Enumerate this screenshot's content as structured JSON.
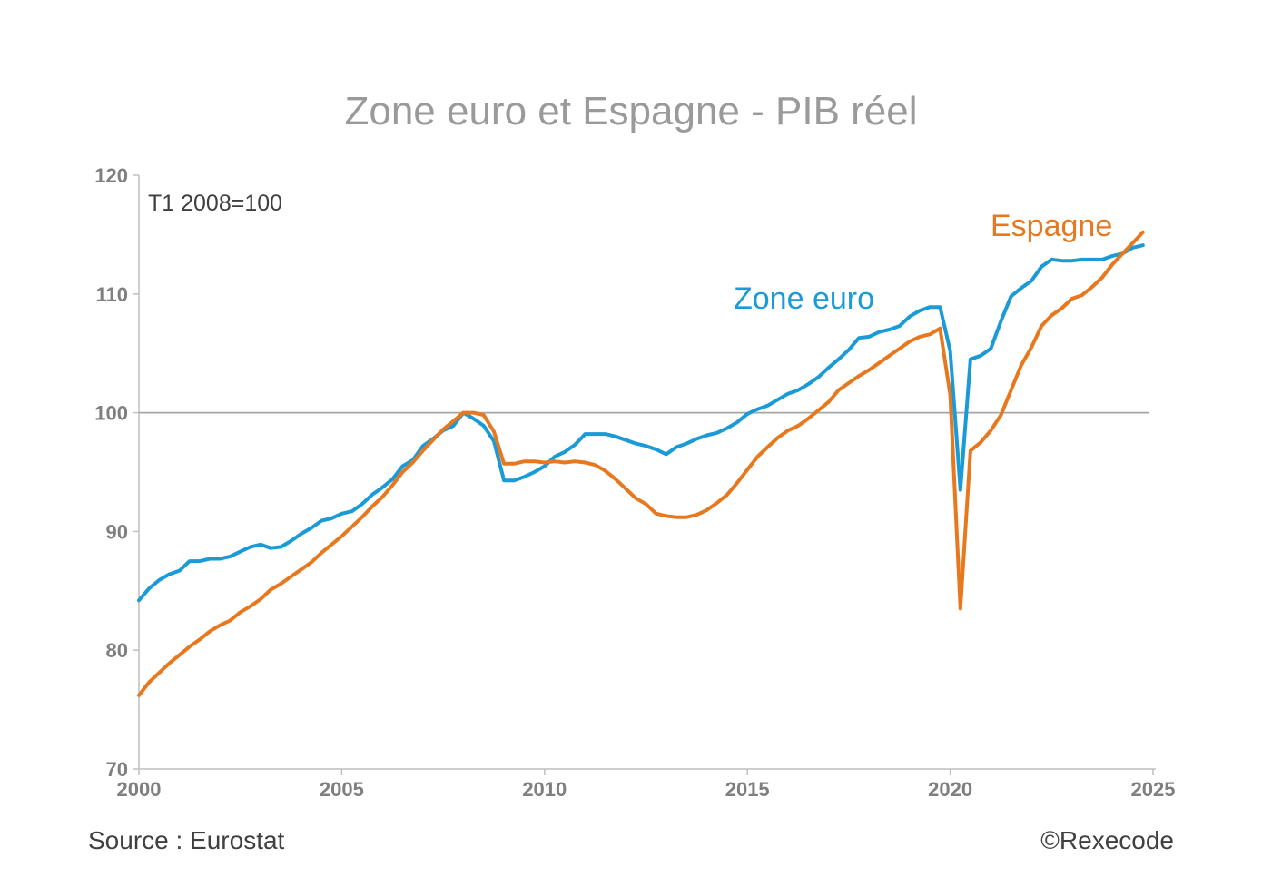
{
  "chart_data": {
    "type": "line",
    "title": "Zone euro et Espagne - PIB réel",
    "subtitle": "T1 2008=100",
    "xlabel": "",
    "ylabel": "",
    "xlim": [
      2000,
      2025
    ],
    "ylim": [
      70,
      120
    ],
    "x_ticks": [
      2000,
      2005,
      2010,
      2015,
      2020,
      2025
    ],
    "y_ticks": [
      70,
      80,
      90,
      100,
      110,
      120
    ],
    "x_tick_labels": [
      "2000",
      "2005",
      "2010",
      "2015",
      "2020",
      "2025"
    ],
    "y_tick_labels": [
      "70",
      "80",
      "90",
      "100",
      "110",
      "120"
    ],
    "reference_line": 100,
    "grid": false,
    "series": [
      {
        "name": "Zone euro",
        "color": "#1a9bd7",
        "points": [
          [
            2000.0,
            84.2
          ],
          [
            2000.25,
            85.2
          ],
          [
            2000.5,
            85.9
          ],
          [
            2000.75,
            86.4
          ],
          [
            2001.0,
            86.7
          ],
          [
            2001.25,
            87.5
          ],
          [
            2001.5,
            87.5
          ],
          [
            2001.75,
            87.7
          ],
          [
            2002.0,
            87.7
          ],
          [
            2002.25,
            87.9
          ],
          [
            2002.5,
            88.3
          ],
          [
            2002.75,
            88.7
          ],
          [
            2003.0,
            88.9
          ],
          [
            2003.25,
            88.6
          ],
          [
            2003.5,
            88.7
          ],
          [
            2003.75,
            89.2
          ],
          [
            2004.0,
            89.8
          ],
          [
            2004.25,
            90.3
          ],
          [
            2004.5,
            90.9
          ],
          [
            2004.75,
            91.1
          ],
          [
            2005.0,
            91.5
          ],
          [
            2005.25,
            91.7
          ],
          [
            2005.5,
            92.3
          ],
          [
            2005.75,
            93.1
          ],
          [
            2006.0,
            93.7
          ],
          [
            2006.25,
            94.4
          ],
          [
            2006.5,
            95.5
          ],
          [
            2006.75,
            96.0
          ],
          [
            2007.0,
            97.2
          ],
          [
            2007.25,
            97.8
          ],
          [
            2007.5,
            98.5
          ],
          [
            2007.75,
            98.9
          ],
          [
            2008.0,
            100.0
          ],
          [
            2008.25,
            99.5
          ],
          [
            2008.5,
            98.9
          ],
          [
            2008.75,
            97.6
          ],
          [
            2009.0,
            94.3
          ],
          [
            2009.25,
            94.3
          ],
          [
            2009.5,
            94.6
          ],
          [
            2009.75,
            95.0
          ],
          [
            2010.0,
            95.5
          ],
          [
            2010.25,
            96.3
          ],
          [
            2010.5,
            96.7
          ],
          [
            2010.75,
            97.3
          ],
          [
            2011.0,
            98.2
          ],
          [
            2011.25,
            98.2
          ],
          [
            2011.5,
            98.2
          ],
          [
            2011.75,
            98.0
          ],
          [
            2012.0,
            97.7
          ],
          [
            2012.25,
            97.4
          ],
          [
            2012.5,
            97.2
          ],
          [
            2012.75,
            96.9
          ],
          [
            2013.0,
            96.5
          ],
          [
            2013.25,
            97.1
          ],
          [
            2013.5,
            97.4
          ],
          [
            2013.75,
            97.8
          ],
          [
            2014.0,
            98.1
          ],
          [
            2014.25,
            98.3
          ],
          [
            2014.5,
            98.7
          ],
          [
            2014.75,
            99.2
          ],
          [
            2015.0,
            99.9
          ],
          [
            2015.25,
            100.3
          ],
          [
            2015.5,
            100.6
          ],
          [
            2015.75,
            101.1
          ],
          [
            2016.0,
            101.6
          ],
          [
            2016.25,
            101.9
          ],
          [
            2016.5,
            102.4
          ],
          [
            2016.75,
            103.0
          ],
          [
            2017.0,
            103.8
          ],
          [
            2017.25,
            104.5
          ],
          [
            2017.5,
            105.3
          ],
          [
            2017.75,
            106.3
          ],
          [
            2018.0,
            106.4
          ],
          [
            2018.25,
            106.8
          ],
          [
            2018.5,
            107.0
          ],
          [
            2018.75,
            107.3
          ],
          [
            2019.0,
            108.1
          ],
          [
            2019.25,
            108.6
          ],
          [
            2019.5,
            108.9
          ],
          [
            2019.75,
            108.9
          ],
          [
            2020.0,
            105.2
          ],
          [
            2020.25,
            93.5
          ],
          [
            2020.5,
            104.5
          ],
          [
            2020.75,
            104.8
          ],
          [
            2021.0,
            105.4
          ],
          [
            2021.25,
            107.7
          ],
          [
            2021.5,
            109.8
          ],
          [
            2021.75,
            110.5
          ],
          [
            2022.0,
            111.1
          ],
          [
            2022.25,
            112.3
          ],
          [
            2022.5,
            112.9
          ],
          [
            2022.75,
            112.8
          ],
          [
            2023.0,
            112.8
          ],
          [
            2023.25,
            112.9
          ],
          [
            2023.5,
            112.9
          ],
          [
            2023.75,
            112.9
          ],
          [
            2024.0,
            113.2
          ],
          [
            2024.25,
            113.4
          ],
          [
            2024.5,
            113.9
          ],
          [
            2024.75,
            114.1
          ]
        ]
      },
      {
        "name": "Espagne",
        "color": "#e8781e",
        "points": [
          [
            2000.0,
            76.2
          ],
          [
            2000.25,
            77.3
          ],
          [
            2000.5,
            78.1
          ],
          [
            2000.75,
            78.9
          ],
          [
            2001.0,
            79.6
          ],
          [
            2001.25,
            80.3
          ],
          [
            2001.5,
            80.9
          ],
          [
            2001.75,
            81.6
          ],
          [
            2002.0,
            82.1
          ],
          [
            2002.25,
            82.5
          ],
          [
            2002.5,
            83.2
          ],
          [
            2002.75,
            83.7
          ],
          [
            2003.0,
            84.3
          ],
          [
            2003.25,
            85.1
          ],
          [
            2003.5,
            85.6
          ],
          [
            2003.75,
            86.2
          ],
          [
            2004.0,
            86.8
          ],
          [
            2004.25,
            87.4
          ],
          [
            2004.5,
            88.2
          ],
          [
            2004.75,
            88.9
          ],
          [
            2005.0,
            89.6
          ],
          [
            2005.25,
            90.4
          ],
          [
            2005.5,
            91.2
          ],
          [
            2005.75,
            92.1
          ],
          [
            2006.0,
            92.9
          ],
          [
            2006.25,
            93.9
          ],
          [
            2006.5,
            95.0
          ],
          [
            2006.75,
            95.8
          ],
          [
            2007.0,
            96.8
          ],
          [
            2007.25,
            97.7
          ],
          [
            2007.5,
            98.6
          ],
          [
            2007.75,
            99.3
          ],
          [
            2008.0,
            100.0
          ],
          [
            2008.25,
            100.0
          ],
          [
            2008.5,
            99.8
          ],
          [
            2008.75,
            98.4
          ],
          [
            2009.0,
            95.7
          ],
          [
            2009.25,
            95.7
          ],
          [
            2009.5,
            95.9
          ],
          [
            2009.75,
            95.9
          ],
          [
            2010.0,
            95.8
          ],
          [
            2010.25,
            95.9
          ],
          [
            2010.5,
            95.8
          ],
          [
            2010.75,
            95.9
          ],
          [
            2011.0,
            95.8
          ],
          [
            2011.25,
            95.6
          ],
          [
            2011.5,
            95.1
          ],
          [
            2011.75,
            94.4
          ],
          [
            2012.0,
            93.6
          ],
          [
            2012.25,
            92.8
          ],
          [
            2012.5,
            92.3
          ],
          [
            2012.75,
            91.5
          ],
          [
            2013.0,
            91.3
          ],
          [
            2013.25,
            91.2
          ],
          [
            2013.5,
            91.2
          ],
          [
            2013.75,
            91.4
          ],
          [
            2014.0,
            91.8
          ],
          [
            2014.25,
            92.4
          ],
          [
            2014.5,
            93.1
          ],
          [
            2014.75,
            94.1
          ],
          [
            2015.0,
            95.2
          ],
          [
            2015.25,
            96.3
          ],
          [
            2015.5,
            97.1
          ],
          [
            2015.75,
            97.9
          ],
          [
            2016.0,
            98.5
          ],
          [
            2016.25,
            98.9
          ],
          [
            2016.5,
            99.5
          ],
          [
            2016.75,
            100.2
          ],
          [
            2017.0,
            100.9
          ],
          [
            2017.25,
            101.9
          ],
          [
            2017.5,
            102.5
          ],
          [
            2017.75,
            103.1
          ],
          [
            2018.0,
            103.6
          ],
          [
            2018.25,
            104.2
          ],
          [
            2018.5,
            104.8
          ],
          [
            2018.75,
            105.4
          ],
          [
            2019.0,
            106.0
          ],
          [
            2019.25,
            106.4
          ],
          [
            2019.5,
            106.6
          ],
          [
            2019.75,
            107.1
          ],
          [
            2020.0,
            101.5
          ],
          [
            2020.25,
            83.5
          ],
          [
            2020.5,
            96.8
          ],
          [
            2020.75,
            97.5
          ],
          [
            2021.0,
            98.5
          ],
          [
            2021.25,
            99.8
          ],
          [
            2021.5,
            101.9
          ],
          [
            2021.75,
            104.0
          ],
          [
            2022.0,
            105.5
          ],
          [
            2022.25,
            107.3
          ],
          [
            2022.5,
            108.2
          ],
          [
            2022.75,
            108.8
          ],
          [
            2023.0,
            109.6
          ],
          [
            2023.25,
            109.9
          ],
          [
            2023.5,
            110.6
          ],
          [
            2023.75,
            111.4
          ],
          [
            2024.0,
            112.5
          ],
          [
            2024.25,
            113.4
          ],
          [
            2024.5,
            114.3
          ],
          [
            2024.75,
            115.2
          ]
        ]
      }
    ]
  },
  "footer": {
    "source": "Source : Eurostat",
    "copyright": "©Rexecode"
  }
}
